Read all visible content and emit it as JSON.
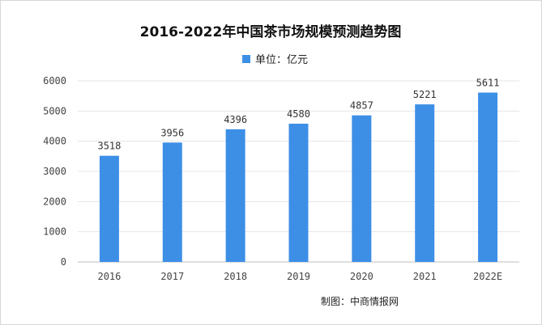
{
  "chart_data": {
    "type": "bar",
    "title": "2016-2022年中国茶市场规模预测趋势图",
    "categories": [
      "2016",
      "2017",
      "2018",
      "2019",
      "2020",
      "2021",
      "2022E"
    ],
    "series": [
      {
        "name": "单位：亿元",
        "values": [
          3518,
          3956,
          4396,
          4580,
          4857,
          5221,
          5611
        ]
      }
    ],
    "ylim": [
      0,
      6000
    ],
    "yticks": [
      0,
      1000,
      2000,
      3000,
      4000,
      5000,
      6000
    ],
    "legend_position": "top-center",
    "grid": true,
    "bar_color": "#3d8fe6",
    "source": "制图：中商情报网"
  }
}
